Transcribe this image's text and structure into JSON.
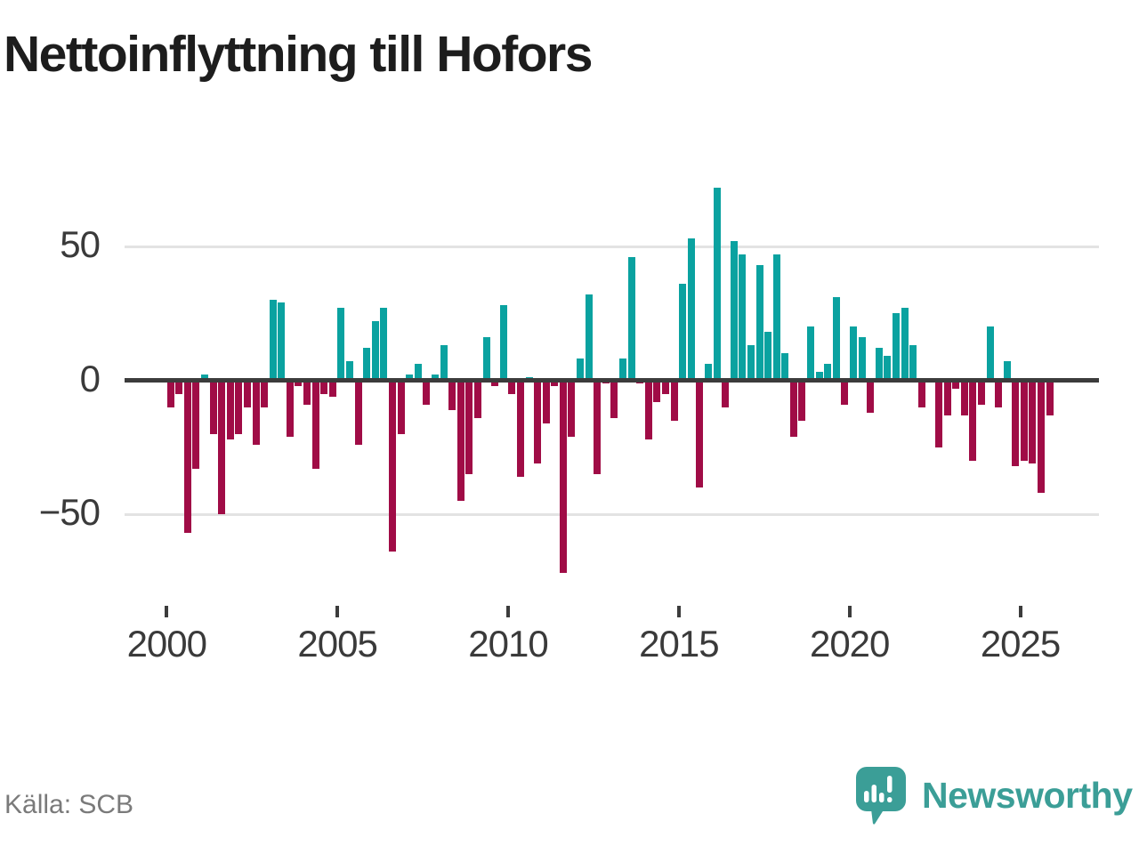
{
  "title": "Nettoinflyttning till Hofors",
  "source": "Källa: SCB",
  "branding": {
    "name": "Newsworthy",
    "logo_color": "#3b9e97"
  },
  "colors": {
    "positive": "#0aa2a0",
    "negative": "#a00c46",
    "zero_line": "#3c3c3c",
    "gridline": "#e3e3e3",
    "title_text": "#1d1d1d",
    "axis_text": "#3a3a3a",
    "source_text": "#7a7a7a"
  },
  "chart_data": {
    "type": "bar",
    "title": "Nettoinflyttning till Hofors",
    "x_unit": "quarter",
    "grid": "horizontal",
    "legend": "none",
    "ylim": [
      -75,
      92
    ],
    "positive_color": "#0aa2a0",
    "negative_color": "#a00c46",
    "y_ticks": [
      {
        "label": "50",
        "value": 50
      },
      {
        "label": "0",
        "value": 0
      },
      {
        "label": "−50",
        "value": -50
      }
    ],
    "x_ticks": [
      {
        "label": "2000",
        "year": 2000
      },
      {
        "label": "2005",
        "year": 2005
      },
      {
        "label": "2010",
        "year": 2010
      },
      {
        "label": "2015",
        "year": 2015
      },
      {
        "label": "2020",
        "year": 2020
      },
      {
        "label": "2025",
        "year": 2025
      }
    ],
    "categories": [
      "2000 Q1",
      "2000 Q2",
      "2000 Q3",
      "2000 Q4",
      "2001 Q1",
      "2001 Q2",
      "2001 Q3",
      "2001 Q4",
      "2002 Q1",
      "2002 Q2",
      "2002 Q3",
      "2002 Q4",
      "2003 Q1",
      "2003 Q2",
      "2003 Q3",
      "2003 Q4",
      "2004 Q1",
      "2004 Q2",
      "2004 Q3",
      "2004 Q4",
      "2005 Q1",
      "2005 Q2",
      "2005 Q3",
      "2005 Q4",
      "2006 Q1",
      "2006 Q2",
      "2006 Q3",
      "2006 Q4",
      "2007 Q1",
      "2007 Q2",
      "2007 Q3",
      "2007 Q4",
      "2008 Q1",
      "2008 Q2",
      "2008 Q3",
      "2008 Q4",
      "2009 Q1",
      "2009 Q2",
      "2009 Q3",
      "2009 Q4",
      "2010 Q1",
      "2010 Q2",
      "2010 Q3",
      "2010 Q4",
      "2011 Q1",
      "2011 Q2",
      "2011 Q3",
      "2011 Q4",
      "2012 Q1",
      "2012 Q2",
      "2012 Q3",
      "2012 Q4",
      "2013 Q1",
      "2013 Q2",
      "2013 Q3",
      "2013 Q4",
      "2014 Q1",
      "2014 Q2",
      "2014 Q3",
      "2014 Q4",
      "2015 Q1",
      "2015 Q2",
      "2015 Q3",
      "2015 Q4",
      "2016 Q1",
      "2016 Q2",
      "2016 Q3",
      "2016 Q4",
      "2017 Q1",
      "2017 Q2",
      "2017 Q3",
      "2017 Q4",
      "2018 Q1",
      "2018 Q2",
      "2018 Q3",
      "2018 Q4",
      "2019 Q1",
      "2019 Q2",
      "2019 Q3",
      "2019 Q4",
      "2020 Q1",
      "2020 Q2",
      "2020 Q3",
      "2020 Q4",
      "2021 Q1",
      "2021 Q2",
      "2021 Q3",
      "2021 Q4",
      "2022 Q1",
      "2022 Q2",
      "2022 Q3",
      "2022 Q4",
      "2023 Q1",
      "2023 Q2",
      "2023 Q3",
      "2023 Q4",
      "2024 Q1",
      "2024 Q2",
      "2024 Q3",
      "2024 Q4",
      "2025 Q1",
      "2025 Q2",
      "2025 Q3",
      "2025 Q4"
    ],
    "values": [
      -10,
      -5,
      -57,
      -33,
      2,
      -20,
      -50,
      -22,
      -20,
      -10,
      -24,
      -10,
      30,
      29,
      -21,
      -2,
      -9,
      -33,
      -5,
      -6,
      27,
      7,
      -24,
      12,
      22,
      27,
      -64,
      -20,
      2,
      6,
      -9,
      2,
      13,
      -11,
      -45,
      -35,
      -14,
      16,
      -2,
      28,
      -5,
      -36,
      1,
      -31,
      -16,
      -2,
      -72,
      -21,
      8,
      32,
      -35,
      -1,
      -14,
      8,
      46,
      -1,
      -22,
      -8,
      -5,
      -15,
      36,
      53,
      -40,
      6,
      72,
      -10,
      52,
      47,
      13,
      43,
      18,
      47,
      10,
      -21,
      -15,
      20,
      3,
      6,
      31,
      -9,
      20,
      16,
      -12,
      12,
      9,
      25,
      27,
      13,
      -10,
      0,
      -25,
      -13,
      -3,
      -13,
      -30,
      -9,
      20,
      -10,
      7,
      -32,
      -30,
      -31,
      -42,
      -13
    ]
  }
}
